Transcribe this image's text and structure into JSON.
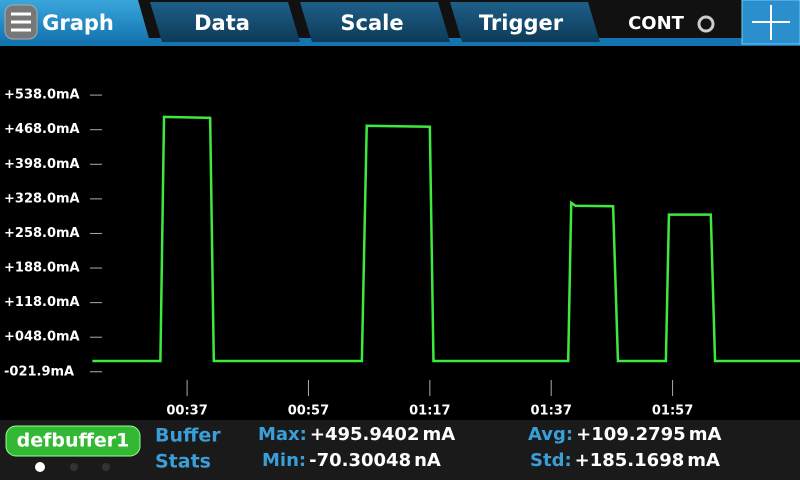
{
  "tabs": [
    "Graph",
    "Data",
    "Scale",
    "Trigger"
  ],
  "mode": "CONT",
  "chart_data": {
    "type": "line",
    "x": [
      21.4,
      32.6,
      33.2,
      40.8,
      41.4,
      65.8,
      66.6,
      77.0,
      77.6,
      99.8,
      100.3,
      101.0,
      107.2,
      108.0,
      115.9,
      116.4,
      123.3,
      124.0,
      138.2
    ],
    "series": [
      {
        "color": "#3ee83e",
        "values": [
          0,
          0,
          494,
          492,
          0,
          0,
          476,
          474,
          0,
          0,
          320,
          314,
          313,
          0,
          0,
          296,
          296,
          0,
          0
        ]
      }
    ],
    "xlim": [
      21,
      138
    ],
    "xticks": [
      {
        "value": 37,
        "label": "00:37"
      },
      {
        "value": 57,
        "label": "00:57"
      },
      {
        "value": 77,
        "label": "01:17"
      },
      {
        "value": 97,
        "label": "01:37"
      },
      {
        "value": 117,
        "label": "01:57"
      }
    ],
    "ylim": [
      -75,
      605
    ],
    "yticks": [
      {
        "value": -21.9,
        "label": "-021.9mA"
      },
      {
        "value": 48,
        "label": "+048.0mA"
      },
      {
        "value": 118,
        "label": "+118.0mA"
      },
      {
        "value": 188,
        "label": "+188.0mA"
      },
      {
        "value": 258,
        "label": "+258.0mA"
      },
      {
        "value": 328,
        "label": "+328.0mA"
      },
      {
        "value": 398,
        "label": "+398.0mA"
      },
      {
        "value": 468,
        "label": "+468.0mA"
      },
      {
        "value": 538,
        "label": "+538.0mA"
      }
    ]
  },
  "buffer": {
    "name": "defbuffer1",
    "title": [
      "Buffer",
      "Stats"
    ],
    "stats": [
      {
        "label": "Max:",
        "value": "+495.9402",
        "unit": "mA"
      },
      {
        "label": "Avg:",
        "value": "+109.2795",
        "unit": "mA"
      },
      {
        "label": "Min:",
        "value": "-70.30048",
        "unit": "nA"
      },
      {
        "label": "Std:",
        "value": "+185.1698",
        "unit": "mA"
      }
    ]
  }
}
